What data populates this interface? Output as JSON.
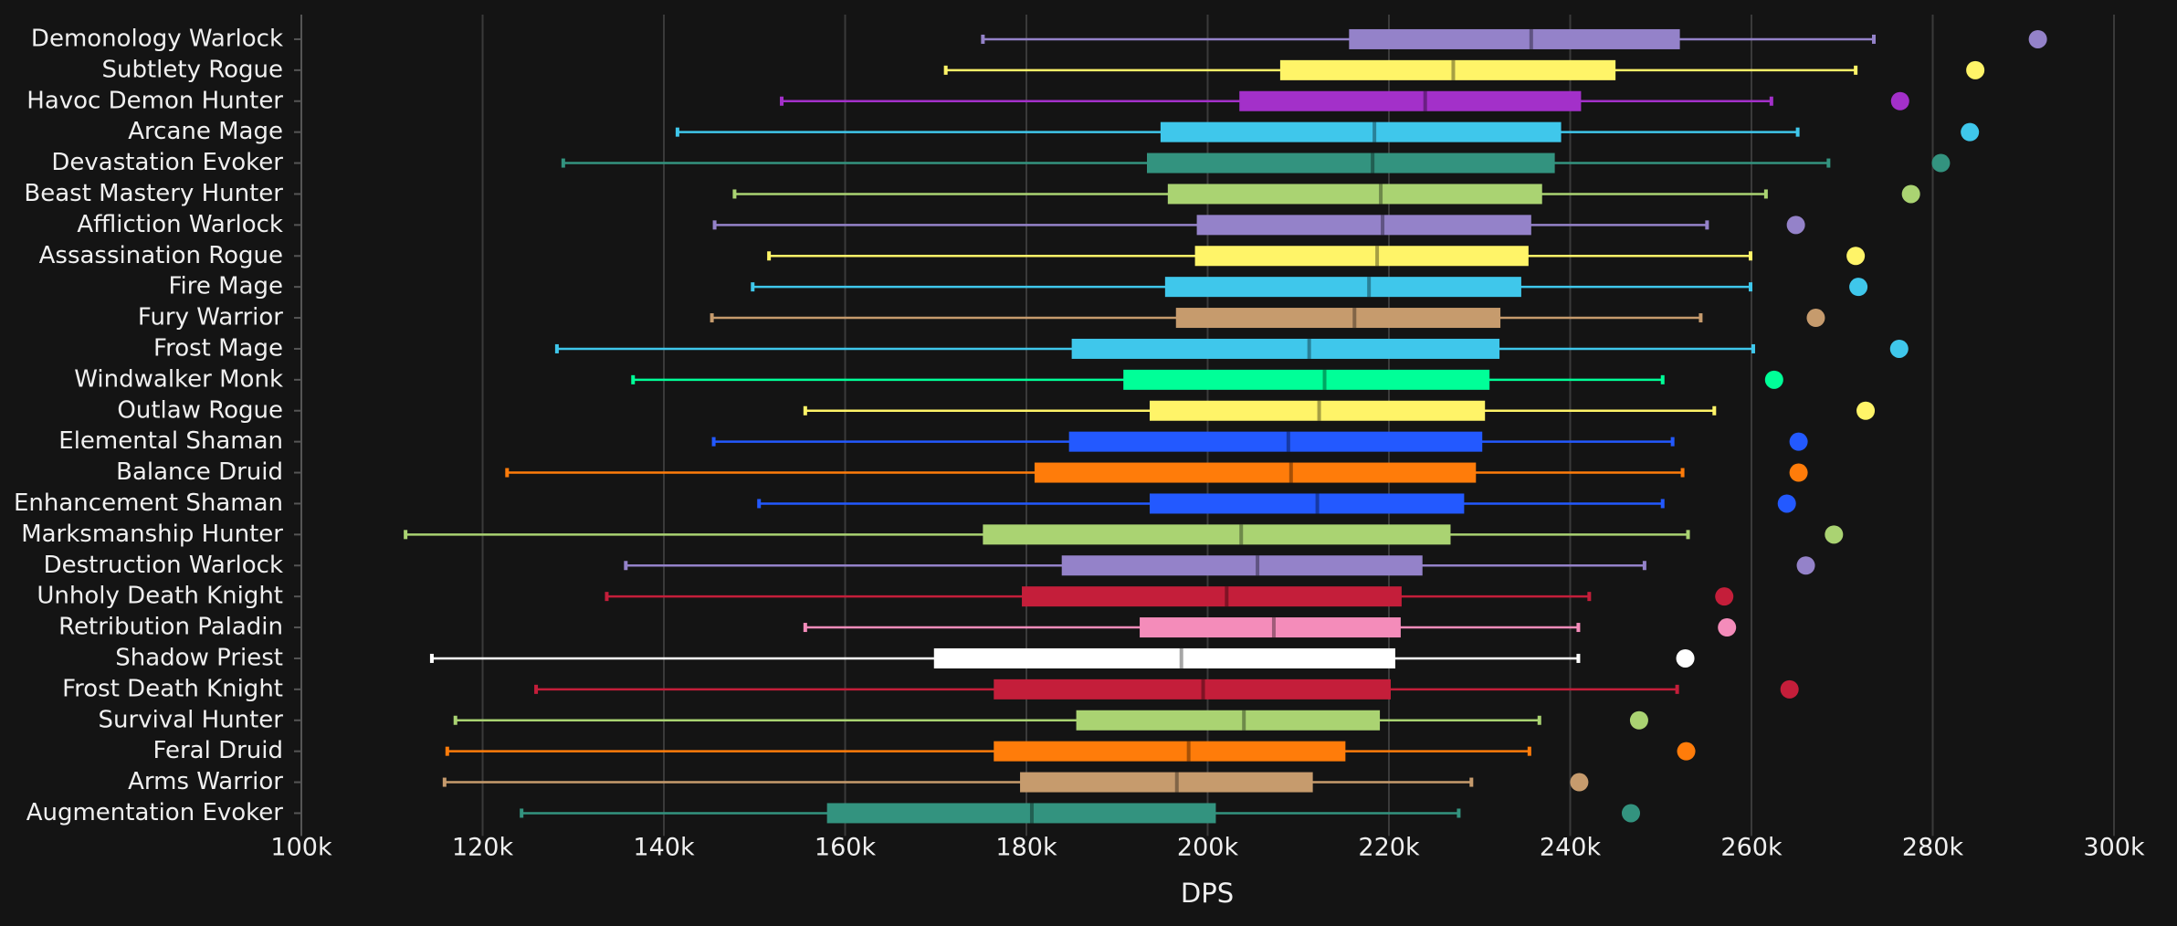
{
  "chart_data": {
    "type": "box",
    "x_label": "DPS",
    "categories": [
      "Demonology Warlock",
      "Subtlety Rogue",
      "Havoc Demon Hunter",
      "Arcane Mage",
      "Devastation Evoker",
      "Beast Mastery Hunter",
      "Affliction Warlock",
      "Assassination Rogue",
      "Fire Mage",
      "Fury Warrior",
      "Frost Mage",
      "Windwalker Monk",
      "Outlaw Rogue",
      "Elemental Shaman",
      "Balance Druid",
      "Enhancement Shaman",
      "Marksmanship Hunter",
      "Destruction Warlock",
      "Unholy Death Knight",
      "Retribution Paladin",
      "Shadow Priest",
      "Frost Death Knight",
      "Survival Hunter",
      "Feral Druid",
      "Arms Warrior",
      "Augmentation Evoker"
    ],
    "colors": [
      "#9482c9",
      "#fff468",
      "#a330c9",
      "#3fc7eb",
      "#33937f",
      "#aad372",
      "#9482c9",
      "#fff468",
      "#3fc7eb",
      "#c69b6d",
      "#3fc7eb",
      "#00ff98",
      "#fff468",
      "#2359ff",
      "#ff7c0a",
      "#2359ff",
      "#aad372",
      "#9482c9",
      "#c41e3a",
      "#f48cba",
      "#ffffff",
      "#c41e3a",
      "#aad372",
      "#ff7c0a",
      "#c69b6d",
      "#33937f"
    ],
    "whisker_low": [
      175200,
      171100,
      153000,
      141500,
      128900,
      147800,
      145600,
      151600,
      149800,
      145300,
      128200,
      136600,
      155600,
      145500,
      122700,
      150500,
      111500,
      135800,
      133700,
      155600,
      114400,
      125900,
      117000,
      116100,
      115800,
      124300
    ],
    "q1": [
      215600,
      208000,
      203500,
      194800,
      193300,
      195600,
      198800,
      198600,
      195300,
      196500,
      185000,
      190700,
      193600,
      184700,
      180900,
      193600,
      175200,
      183900,
      179500,
      192500,
      169800,
      176400,
      185500,
      176400,
      179300,
      158000
    ],
    "median": [
      235700,
      227100,
      224000,
      218400,
      218200,
      219100,
      219300,
      218700,
      217800,
      216200,
      211200,
      212900,
      212300,
      208900,
      209200,
      212100,
      203700,
      205500,
      202100,
      207300,
      197100,
      199500,
      204000,
      197900,
      196600,
      180600
    ],
    "q3": [
      252100,
      245000,
      241200,
      239000,
      238300,
      236900,
      235700,
      235400,
      234600,
      232300,
      232200,
      231100,
      230600,
      230300,
      229600,
      228300,
      226800,
      223700,
      221400,
      221300,
      220700,
      220200,
      219000,
      215200,
      211600,
      200900
    ],
    "whisker_high": [
      273500,
      271500,
      262200,
      265100,
      268500,
      261600,
      255100,
      259900,
      259900,
      254400,
      260200,
      250200,
      255900,
      251300,
      252400,
      250200,
      253000,
      248200,
      242100,
      240900,
      240900,
      251800,
      236600,
      235500,
      229100,
      227700
    ],
    "max": [
      291600,
      284700,
      276400,
      284100,
      280900,
      277600,
      264900,
      271500,
      271800,
      267100,
      276300,
      262500,
      272600,
      265200,
      265200,
      263900,
      269100,
      266000,
      257000,
      257300,
      252700,
      264200,
      247600,
      252800,
      241000,
      246700
    ],
    "xlim": [
      100000,
      300000
    ],
    "xticks": [
      {
        "value": 100000,
        "label": "100k"
      },
      {
        "value": 120000,
        "label": "120k"
      },
      {
        "value": 140000,
        "label": "140k"
      },
      {
        "value": 160000,
        "label": "160k"
      },
      {
        "value": 180000,
        "label": "180k"
      },
      {
        "value": 200000,
        "label": "200k"
      },
      {
        "value": 220000,
        "label": "220k"
      },
      {
        "value": 240000,
        "label": "240k"
      },
      {
        "value": 260000,
        "label": "260k"
      },
      {
        "value": 280000,
        "label": "280k"
      },
      {
        "value": 300000,
        "label": "300k"
      }
    ],
    "grid": true
  }
}
